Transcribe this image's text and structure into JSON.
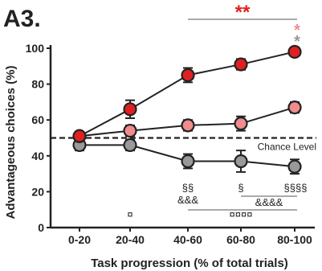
{
  "panel_label": "A3.",
  "chart_data": {
    "type": "line",
    "categories": [
      "0-20",
      "20-40",
      "40-60",
      "60-80",
      "80-100"
    ],
    "xlabel": "Task progression (% of total trials)",
    "ylabel": "Advantageous choices (%)",
    "ylim": [
      0,
      100
    ],
    "yticks": [
      0,
      20,
      40,
      60,
      80,
      100
    ],
    "grid": false,
    "reference_line": {
      "y": 50,
      "label": "Chance Level"
    },
    "series": [
      {
        "values": [
          51,
          66,
          85,
          91,
          98
        ],
        "errors": [
          2,
          5,
          4,
          3,
          2
        ],
        "color": "#e02020"
      },
      {
        "values": [
          51,
          54,
          57,
          58,
          67
        ],
        "errors": [
          2,
          3,
          3,
          4,
          3
        ],
        "color": "#f08c8c"
      },
      {
        "values": [
          46,
          46,
          37,
          37,
          34
        ],
        "errors": [
          3,
          3,
          4,
          6,
          4
        ],
        "color": "#999999"
      }
    ],
    "annotations": {
      "top_stars": "**",
      "red_star": "*",
      "gray_star": "*",
      "c2_s1": "§§",
      "c2_s2": "&&&",
      "c3_s1": "§",
      "c4_s1": "§§§§",
      "c34_s2": "&&&&",
      "c1_sym": "¤",
      "c24_sym": "¤¤¤¤"
    }
  }
}
